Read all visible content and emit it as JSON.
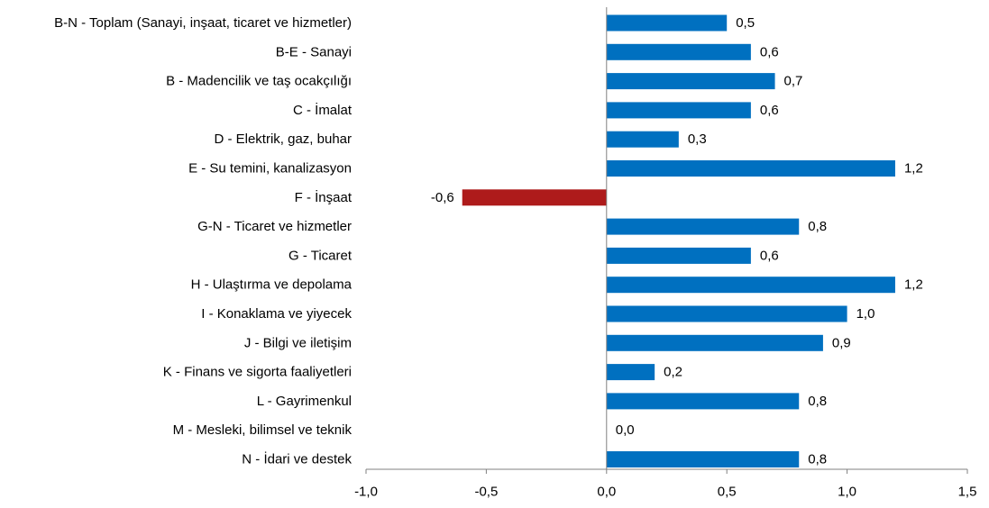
{
  "chart_data": {
    "type": "bar",
    "orientation": "horizontal",
    "categories": [
      "B-N - Toplam (Sanayi, inşaat, ticaret ve hizmetler)",
      "B-E - Sanayi",
      "B - Madencilik ve taş ocakçılığı",
      "C - İmalat",
      "D - Elektrik, gaz, buhar",
      "E - Su temini, kanalizasyon",
      "F - İnşaat",
      "G-N - Ticaret ve hizmetler",
      "G - Ticaret",
      "H - Ulaştırma ve depolama",
      "I - Konaklama ve yiyecek",
      "J - Bilgi ve iletişim",
      "K - Finans ve sigorta faaliyetleri",
      "L - Gayrimenkul",
      "M - Mesleki, bilimsel ve teknik",
      "N - İdari ve destek"
    ],
    "values": [
      0.5,
      0.6,
      0.7,
      0.6,
      0.3,
      1.2,
      -0.6,
      0.8,
      0.6,
      1.2,
      1.0,
      0.9,
      0.2,
      0.8,
      0.0,
      0.8
    ],
    "value_labels": [
      "0,5",
      "0,6",
      "0,7",
      "0,6",
      "0,3",
      "1,2",
      "-0,6",
      "0,8",
      "0,6",
      "1,2",
      "1,0",
      "0,9",
      "0,2",
      "0,8",
      "0,0",
      "0,8"
    ],
    "xlim": [
      -1.0,
      1.5
    ],
    "x_ticks": [
      -1.0,
      -0.5,
      0.0,
      0.5,
      1.0,
      1.5
    ],
    "x_tick_labels": [
      "-1,0",
      "-0,5",
      "0,0",
      "0,5",
      "1,0",
      "1,5"
    ],
    "grid": false,
    "legend": "none",
    "colors": {
      "positive": "#0070C0",
      "negative": "#AE1B1B",
      "axis": "#808080"
    }
  }
}
